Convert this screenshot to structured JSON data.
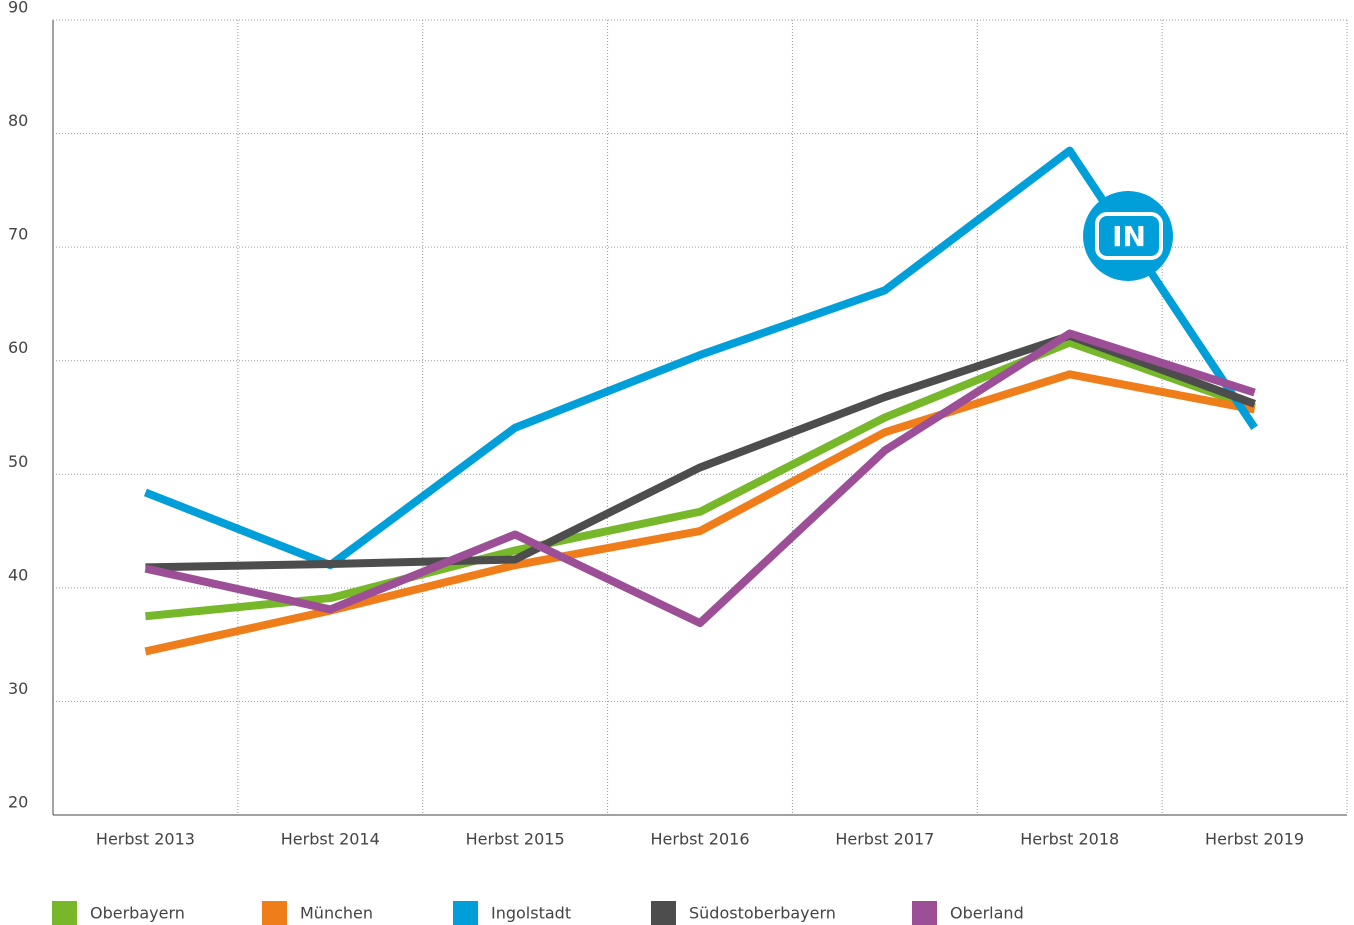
{
  "chart_data": {
    "type": "line",
    "categories": [
      "Herbst 2013",
      "Herbst 2014",
      "Herbst 2015",
      "Herbst 2016",
      "Herbst 2017",
      "Herbst 2018",
      "Herbst 2019"
    ],
    "series": [
      {
        "name": "Oberbayern",
        "color": "#76b82a",
        "values": [
          37.5,
          39.1,
          43.3,
          46.7,
          55.0,
          61.6,
          55.9
        ]
      },
      {
        "name": "München",
        "color": "#ef7d1a",
        "values": [
          34.4,
          38.0,
          42.0,
          45.0,
          53.7,
          58.8,
          55.7
        ]
      },
      {
        "name": "Ingolstadt",
        "color": "#009fda",
        "values": [
          48.4,
          42.0,
          54.1,
          60.5,
          66.2,
          78.5,
          54.1
        ]
      },
      {
        "name": "Südostoberbayern",
        "color": "#4d4d4d",
        "values": [
          41.8,
          42.1,
          42.5,
          50.6,
          56.8,
          62.2,
          56.2
        ]
      },
      {
        "name": "Oberland",
        "color": "#9c4f96",
        "values": [
          41.7,
          38.1,
          44.7,
          36.9,
          52.1,
          62.4,
          57.2
        ]
      }
    ],
    "annotation": "IN",
    "ylim": [
      20,
      90
    ],
    "yticks": [
      20,
      30,
      40,
      50,
      60,
      70,
      80,
      90
    ],
    "grid": true
  }
}
